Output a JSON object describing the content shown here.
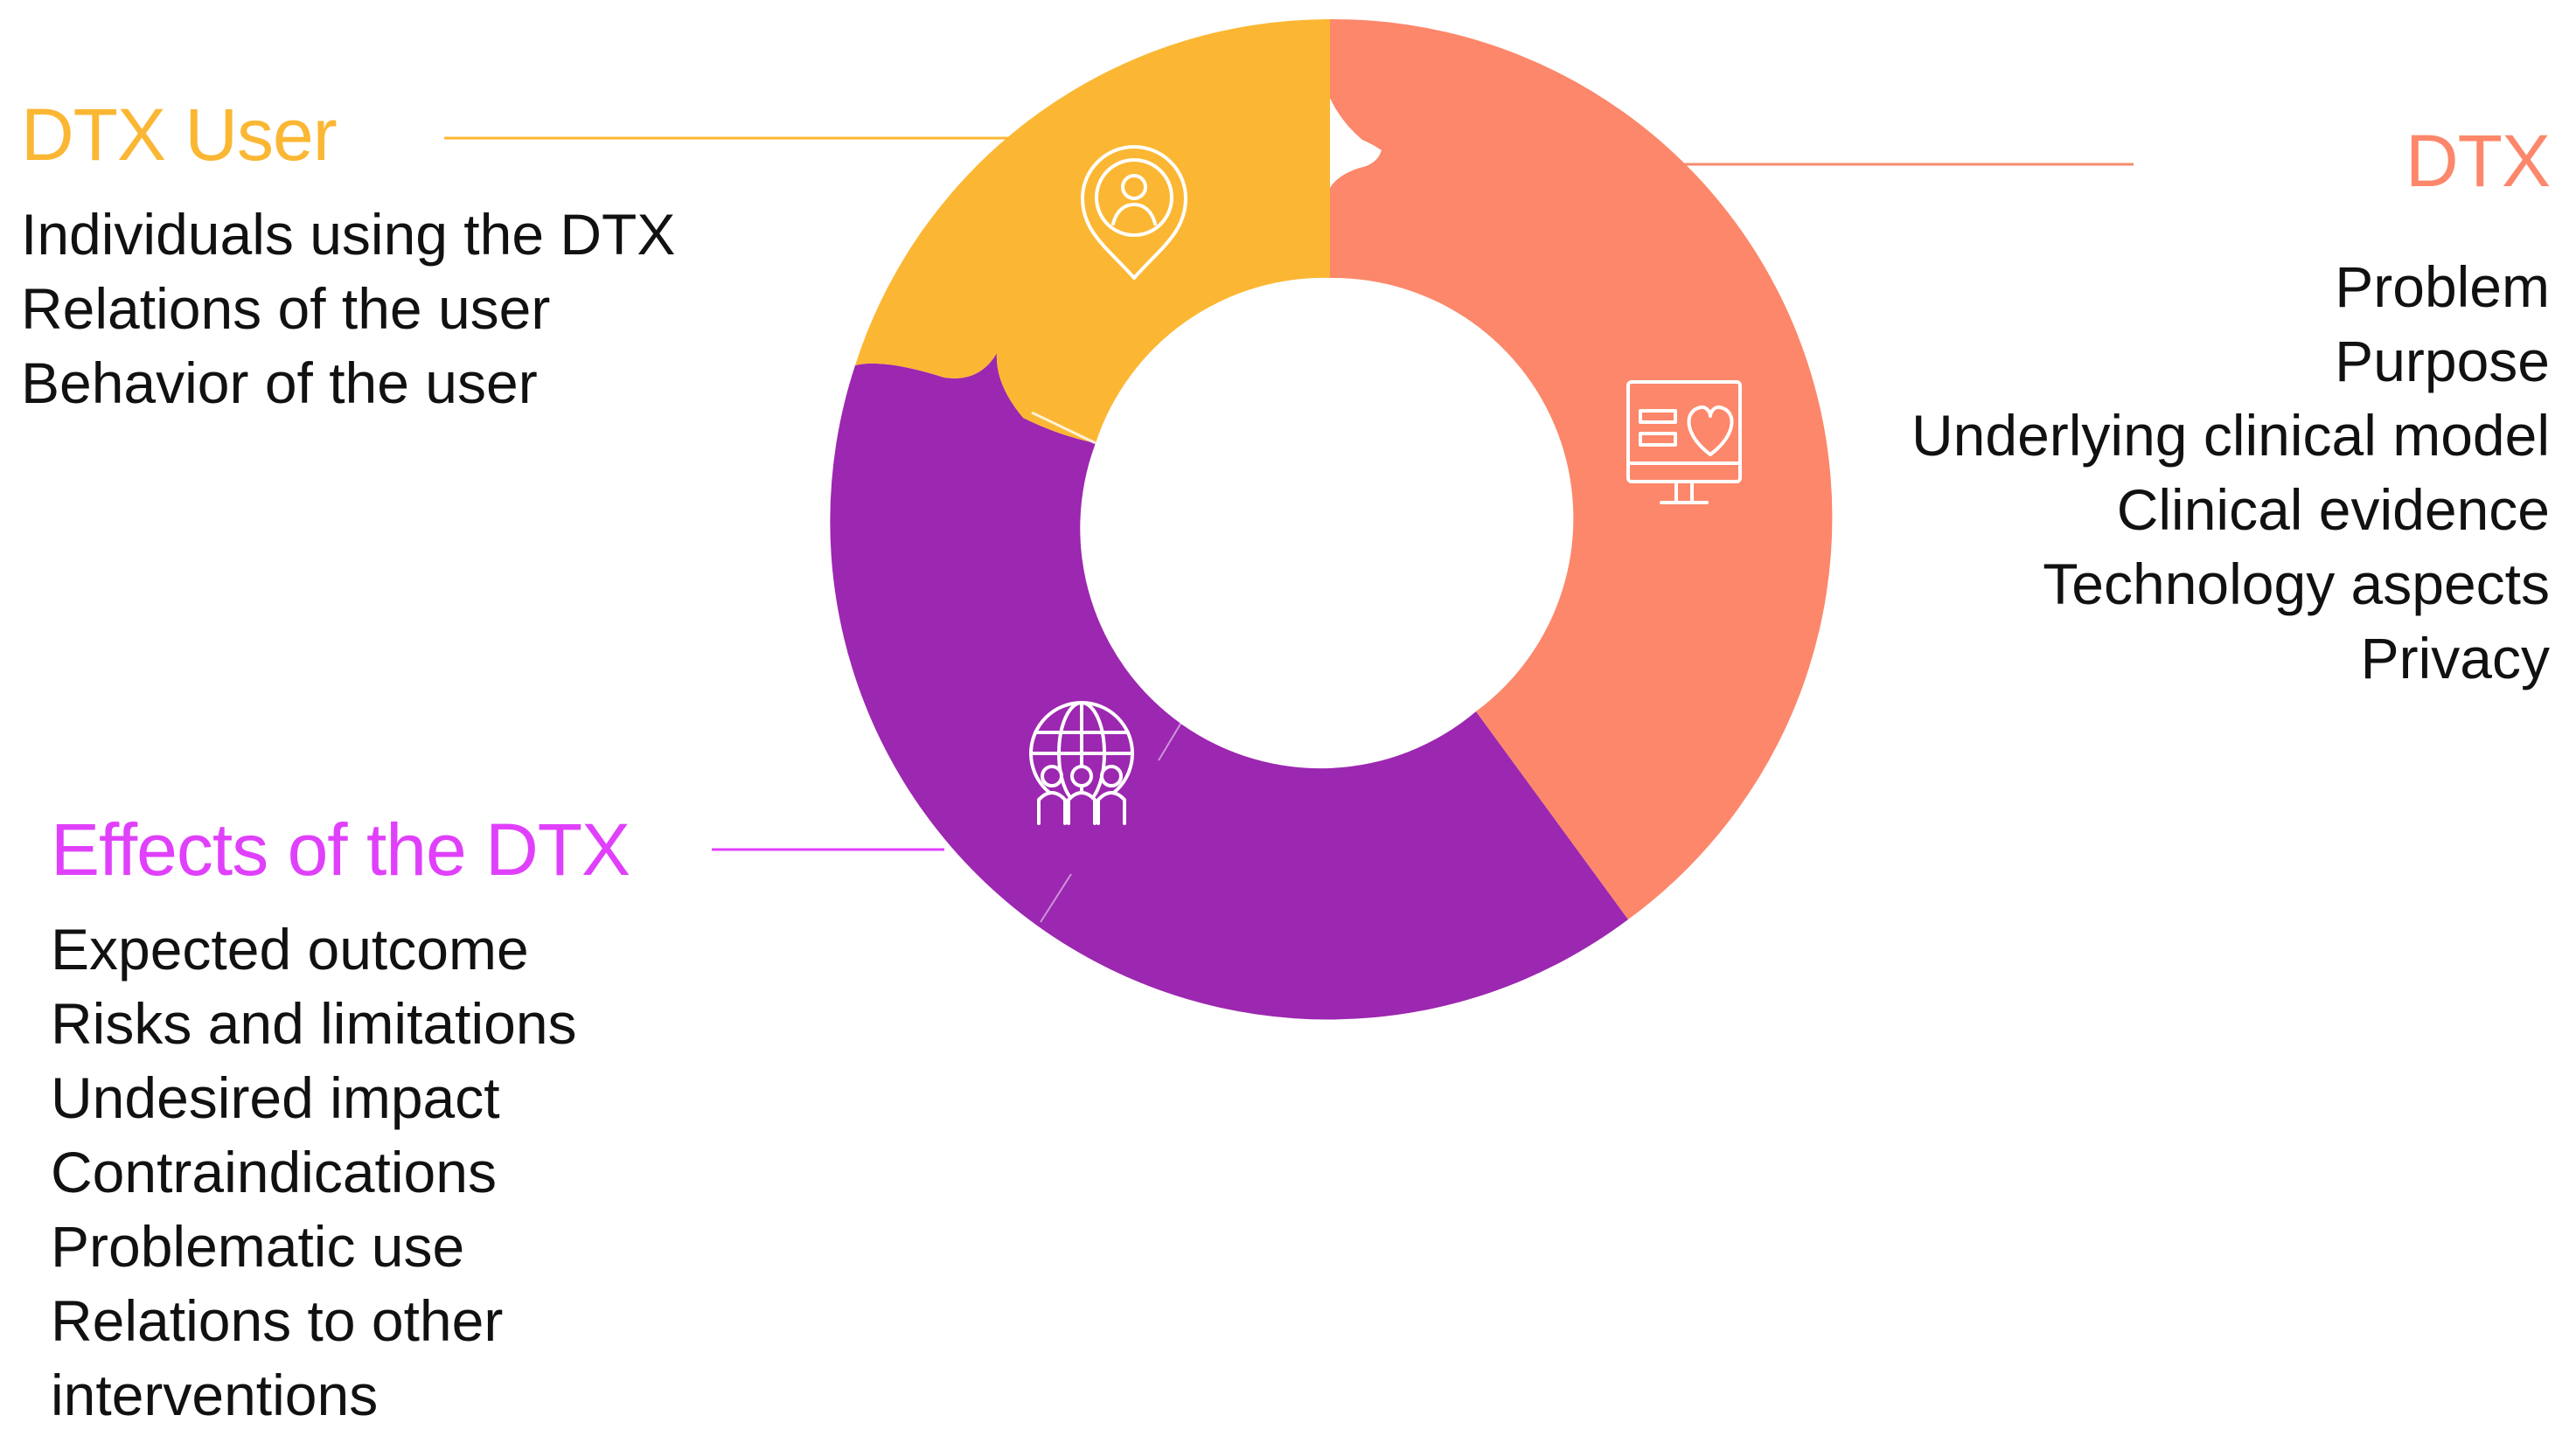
{
  "colors": {
    "dtx": "#fc876b",
    "user": "#fbb733",
    "effects": "#9c27b0",
    "effects_heading": "#e040fb",
    "leader_dtx": "#f78a6c",
    "leader_user": "#fbb733",
    "leader_effects": "#e040fb",
    "icon_stroke": "#ffffff",
    "text": "#111111"
  },
  "segments": [
    {
      "key": "dtx",
      "icon": "monitor-heart-icon"
    },
    {
      "key": "user",
      "icon": "user-location-pin-icon"
    },
    {
      "key": "effects",
      "icon": "people-globe-icon"
    }
  ],
  "dtx": {
    "heading": "DTX",
    "items": [
      "Problem",
      "Purpose",
      "Underlying clinical model",
      "Clinical evidence",
      "Technology aspects",
      "Privacy"
    ]
  },
  "user": {
    "heading": "DTX User",
    "items": [
      "Individuals using the DTX",
      "Relations of the user",
      "Behavior of the user"
    ]
  },
  "effects": {
    "heading": "Effects of the DTX",
    "items": [
      "Expected outcome",
      "Risks and limitations",
      "Undesired impact",
      "Contraindications",
      "Problematic use",
      "Relations to other",
      "interventions"
    ]
  }
}
